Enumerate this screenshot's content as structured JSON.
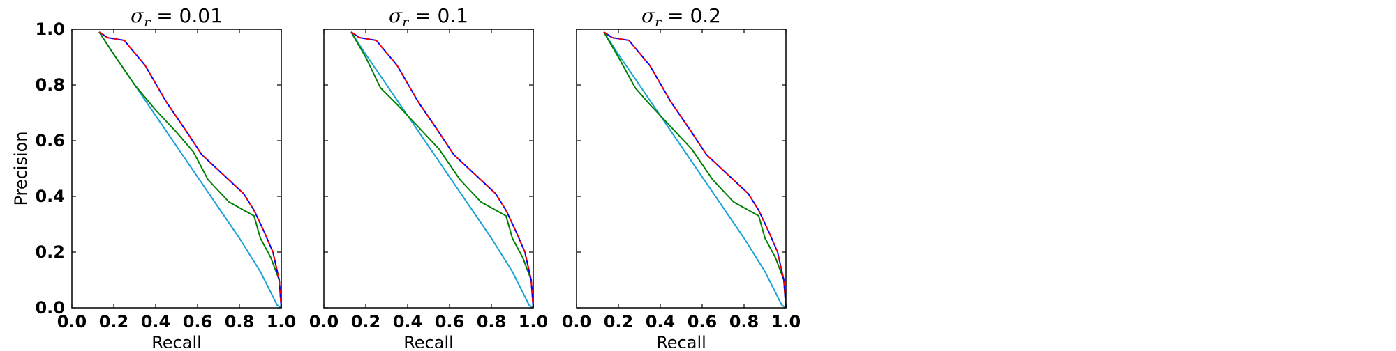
{
  "chart_data": [
    {
      "type": "line",
      "title": "σᵣ = 0.01",
      "title_param": "0.01",
      "xlabel": "Recall",
      "ylabel": "Precision",
      "xlim": [
        0,
        1
      ],
      "ylim": [
        0,
        1
      ],
      "xticks": [
        "0.0",
        "0.2",
        "0.4",
        "0.6",
        "0.8",
        "1.0"
      ],
      "yticks": [
        "0.0",
        "0.2",
        "0.4",
        "0.6",
        "0.8",
        "1.0"
      ],
      "grid": false,
      "series": [
        {
          "color": "#1aa3d6",
          "x": [
            0.13,
            0.2,
            0.3,
            0.4,
            0.5,
            0.6,
            0.7,
            0.8,
            0.9,
            0.98,
            1.0
          ],
          "y": [
            0.99,
            0.91,
            0.8,
            0.69,
            0.58,
            0.47,
            0.36,
            0.25,
            0.13,
            0.01,
            0.0
          ]
        },
        {
          "color": "#008000",
          "x": [
            0.13,
            0.2,
            0.3,
            0.4,
            0.5,
            0.58,
            0.65,
            0.75,
            0.87,
            0.9,
            0.95,
            0.99,
            1.0
          ],
          "y": [
            0.99,
            0.91,
            0.8,
            0.71,
            0.63,
            0.56,
            0.46,
            0.38,
            0.33,
            0.25,
            0.18,
            0.1,
            0.0
          ]
        },
        {
          "color": "#0000ff",
          "x": [
            0.13,
            0.17,
            0.25,
            0.35,
            0.45,
            0.55,
            0.62,
            0.72,
            0.82,
            0.87,
            0.92,
            0.96,
            0.99,
            1.0
          ],
          "y": [
            0.99,
            0.97,
            0.96,
            0.87,
            0.74,
            0.63,
            0.55,
            0.48,
            0.41,
            0.35,
            0.27,
            0.2,
            0.1,
            0.0
          ]
        },
        {
          "color": "#ff0000",
          "dash": "6,6",
          "x": [
            0.13,
            0.17,
            0.25,
            0.35,
            0.45,
            0.55,
            0.62,
            0.72,
            0.82,
            0.87,
            0.92,
            0.96,
            0.99,
            1.0
          ],
          "y": [
            0.99,
            0.97,
            0.96,
            0.87,
            0.74,
            0.63,
            0.55,
            0.48,
            0.41,
            0.35,
            0.27,
            0.2,
            0.1,
            0.0
          ]
        }
      ]
    },
    {
      "type": "line",
      "title": "σᵣ = 0.1",
      "title_param": "0.1",
      "xlabel": "Recall",
      "ylabel": "",
      "xlim": [
        0,
        1
      ],
      "ylim": [
        0,
        1
      ],
      "xticks": [
        "0.0",
        "0.2",
        "0.4",
        "0.6",
        "0.8",
        "1.0"
      ],
      "yticks": [],
      "grid": false,
      "series": [
        {
          "color": "#1aa3d6",
          "x": [
            0.13,
            0.2,
            0.3,
            0.4,
            0.5,
            0.6,
            0.7,
            0.8,
            0.9,
            0.98,
            1.0
          ],
          "y": [
            0.99,
            0.91,
            0.8,
            0.69,
            0.58,
            0.47,
            0.36,
            0.25,
            0.13,
            0.01,
            0.0
          ]
        },
        {
          "color": "#008000",
          "x": [
            0.13,
            0.2,
            0.27,
            0.35,
            0.45,
            0.55,
            0.65,
            0.75,
            0.87,
            0.9,
            0.95,
            0.99,
            1.0
          ],
          "y": [
            0.99,
            0.9,
            0.79,
            0.73,
            0.65,
            0.57,
            0.46,
            0.38,
            0.33,
            0.25,
            0.18,
            0.1,
            0.0
          ]
        },
        {
          "color": "#0000ff",
          "x": [
            0.13,
            0.17,
            0.25,
            0.35,
            0.45,
            0.55,
            0.62,
            0.72,
            0.82,
            0.87,
            0.92,
            0.96,
            0.99,
            1.0
          ],
          "y": [
            0.99,
            0.97,
            0.96,
            0.87,
            0.74,
            0.63,
            0.55,
            0.48,
            0.41,
            0.35,
            0.27,
            0.2,
            0.1,
            0.0
          ]
        },
        {
          "color": "#ff0000",
          "dash": "6,6",
          "x": [
            0.13,
            0.17,
            0.25,
            0.35,
            0.45,
            0.55,
            0.62,
            0.72,
            0.82,
            0.87,
            0.92,
            0.96,
            0.99,
            1.0
          ],
          "y": [
            0.99,
            0.97,
            0.96,
            0.87,
            0.74,
            0.63,
            0.55,
            0.48,
            0.41,
            0.35,
            0.27,
            0.2,
            0.1,
            0.0
          ]
        }
      ]
    },
    {
      "type": "line",
      "title": "σᵣ = 0.2",
      "title_param": "0.2",
      "xlabel": "Recall",
      "ylabel": "",
      "xlim": [
        0,
        1
      ],
      "ylim": [
        0,
        1
      ],
      "xticks": [
        "0.0",
        "0.2",
        "0.4",
        "0.6",
        "0.8",
        "1.0"
      ],
      "yticks": [],
      "grid": false,
      "series": [
        {
          "color": "#1aa3d6",
          "x": [
            0.13,
            0.2,
            0.3,
            0.4,
            0.5,
            0.6,
            0.7,
            0.8,
            0.9,
            0.98,
            1.0
          ],
          "y": [
            0.99,
            0.91,
            0.8,
            0.69,
            0.58,
            0.47,
            0.36,
            0.25,
            0.13,
            0.01,
            0.0
          ]
        },
        {
          "color": "#008000",
          "x": [
            0.13,
            0.2,
            0.28,
            0.35,
            0.45,
            0.55,
            0.65,
            0.75,
            0.87,
            0.9,
            0.95,
            0.99,
            1.0
          ],
          "y": [
            0.99,
            0.9,
            0.79,
            0.73,
            0.65,
            0.57,
            0.46,
            0.38,
            0.33,
            0.25,
            0.18,
            0.1,
            0.0
          ]
        },
        {
          "color": "#0000ff",
          "x": [
            0.13,
            0.17,
            0.25,
            0.35,
            0.45,
            0.55,
            0.62,
            0.72,
            0.82,
            0.87,
            0.92,
            0.96,
            0.99,
            1.0
          ],
          "y": [
            0.99,
            0.97,
            0.96,
            0.87,
            0.74,
            0.63,
            0.55,
            0.48,
            0.41,
            0.35,
            0.27,
            0.2,
            0.1,
            0.0
          ]
        },
        {
          "color": "#ff0000",
          "dash": "6,6",
          "x": [
            0.13,
            0.17,
            0.25,
            0.35,
            0.45,
            0.55,
            0.62,
            0.72,
            0.82,
            0.87,
            0.92,
            0.96,
            0.99,
            1.0
          ],
          "y": [
            0.99,
            0.97,
            0.96,
            0.87,
            0.74,
            0.63,
            0.55,
            0.48,
            0.41,
            0.35,
            0.27,
            0.2,
            0.1,
            0.0
          ]
        }
      ]
    }
  ]
}
